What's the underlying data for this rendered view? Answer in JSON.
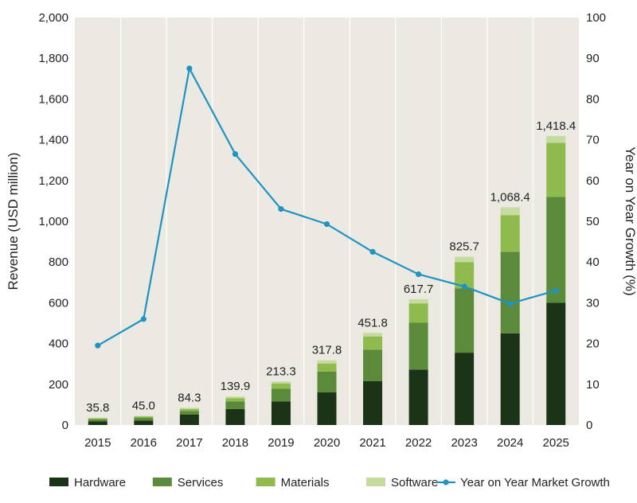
{
  "chart_data": {
    "type": "bar",
    "stacked": true,
    "title": "",
    "categories": [
      "2015",
      "2016",
      "2017",
      "2018",
      "2019",
      "2020",
      "2021",
      "2022",
      "2023",
      "2024",
      "2025"
    ],
    "series": [
      {
        "name": "Hardware",
        "color": "#1b3316",
        "values": [
          18,
          22,
          52,
          78,
          116,
          160,
          215,
          272,
          355,
          450,
          600
        ]
      },
      {
        "name": "Services",
        "color": "#5a8a3a",
        "values": [
          10,
          13,
          17,
          38,
          62,
          102,
          155,
          230,
          315,
          400,
          520
        ]
      },
      {
        "name": "Materials",
        "color": "#8fbb4e",
        "values": [
          5,
          7,
          10,
          16,
          26,
          40,
          65,
          95,
          130,
          180,
          265
        ]
      },
      {
        "name": "Software",
        "color": "#c5dba0",
        "values": [
          2.8,
          3,
          5.3,
          7.9,
          9.3,
          15.8,
          16.8,
          20.7,
          25.7,
          38.4,
          33.4
        ]
      }
    ],
    "totals": [
      "35.8",
      "45.0",
      "84.3",
      "139.9",
      "213.3",
      "317.8",
      "451.8",
      "617.7",
      "825.7",
      "1,068.4",
      "1,418.4"
    ],
    "line_series": {
      "name": "Year on Year Market Growth",
      "color": "#1f93c2",
      "axis": "right",
      "values": [
        19.5,
        26,
        87.5,
        66.5,
        53,
        49.3,
        42.5,
        37,
        34,
        29.8,
        33
      ]
    },
    "ylabel": "Revenue (USD million)",
    "y2label": "Year on Year  Growth (%)",
    "ylim": [
      0,
      2000
    ],
    "y2lim": [
      0,
      100
    ],
    "yticks": [
      "0",
      "200",
      "400",
      "600",
      "800",
      "1,000",
      "1,200",
      "1,400",
      "1,600",
      "1,800",
      "2,000"
    ],
    "y2ticks": [
      "0",
      "10",
      "20",
      "30",
      "40",
      "50",
      "60",
      "70",
      "80",
      "90",
      "100"
    ],
    "plot_background": "#ebe9e2",
    "grid": true,
    "legend_position": "bottom"
  }
}
